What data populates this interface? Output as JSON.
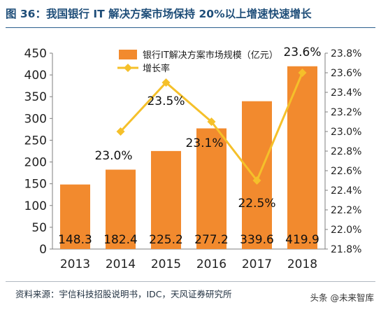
{
  "header": {
    "title": "图 36：我国银行 IT 解决方案市场保持 20%以上增速快速增长"
  },
  "footer": {
    "source": "资料来源：宇信科技招股说明书，IDC，天风证券研究所"
  },
  "watermark": {
    "text": "头条 @未来智库"
  },
  "colors": {
    "bar": "#f28a2e",
    "line": "#f5c02a",
    "title": "#1f4e79"
  },
  "chart_data": {
    "type": "bar",
    "categories": [
      "2013",
      "2014",
      "2015",
      "2016",
      "2017",
      "2018"
    ],
    "series": [
      {
        "name": "银行IT解决方案市场规模（亿元）",
        "type": "bar",
        "axis": "left",
        "values": [
          148.3,
          182.4,
          225.2,
          277.2,
          339.6,
          419.9
        ],
        "labels": [
          "148.3",
          "182.4",
          "225.2",
          "277.2",
          "339.6",
          "419.9"
        ]
      },
      {
        "name": "增长率",
        "type": "line",
        "axis": "right",
        "values": [
          null,
          23.0,
          23.5,
          23.1,
          22.5,
          23.6
        ],
        "labels": [
          "",
          "23.0%",
          "23.5%",
          "23.1%",
          "22.5%",
          "23.6%"
        ]
      }
    ],
    "y_left": {
      "min": 0,
      "max": 450,
      "ticks": [
        0,
        50,
        100,
        150,
        200,
        250,
        300,
        350,
        400,
        450
      ],
      "tick_labels": [
        "0",
        "50",
        "100",
        "150",
        "200",
        "250",
        "300",
        "350",
        "400",
        "450"
      ]
    },
    "y_right": {
      "min": 21.8,
      "max": 23.8,
      "ticks": [
        21.8,
        22.0,
        22.2,
        22.4,
        22.6,
        22.8,
        23.0,
        23.2,
        23.4,
        23.6,
        23.8
      ],
      "tick_labels": [
        "21.8%",
        "22.0%",
        "22.2%",
        "22.4%",
        "22.6%",
        "22.8%",
        "23.0%",
        "23.2%",
        "23.4%",
        "23.6%",
        "23.8%"
      ]
    },
    "grid": false,
    "legend": "top-center"
  }
}
